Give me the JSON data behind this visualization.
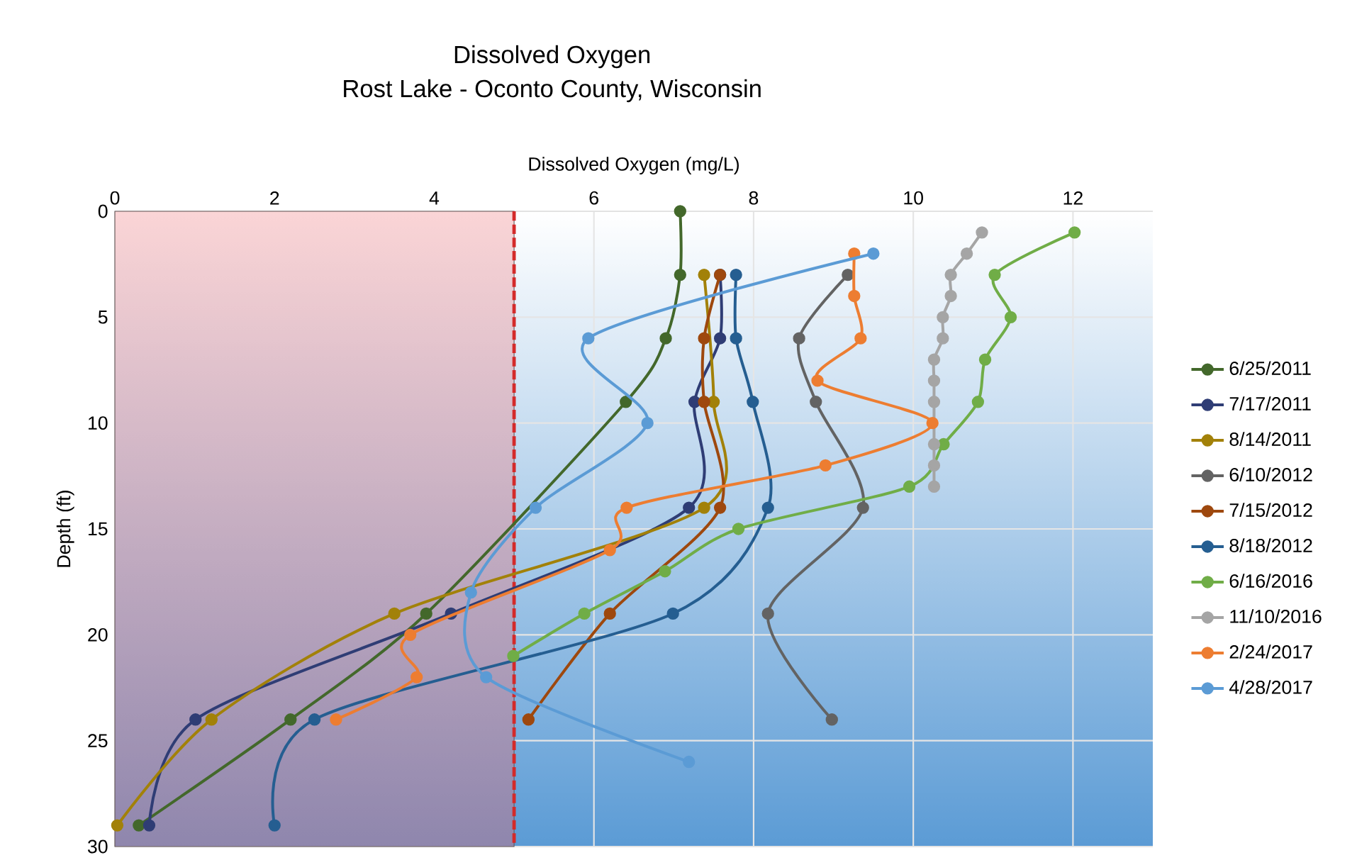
{
  "chart_data": {
    "type": "line",
    "title": "Dissolved Oxygen",
    "subtitle": "Rost Lake - Oconto County, Wisconsin",
    "xlabel": "Dissolved Oxygen (mg/L)",
    "ylabel": "Depth (ft)",
    "xlim": [
      0,
      13
    ],
    "xticks": [
      0,
      2,
      4,
      6,
      8,
      10,
      12
    ],
    "ylim": [
      30,
      0
    ],
    "yticks": [
      0,
      5,
      10,
      15,
      20,
      25,
      30
    ],
    "grid": true,
    "legend": "right",
    "marker": "circle",
    "line_style": "solid",
    "ref_lines": [
      {
        "axis": "x",
        "value": 5,
        "color": "#d42a2a",
        "line_style": "dashed"
      }
    ],
    "bands": [
      {
        "axis": "x",
        "from": 0,
        "to": 5,
        "color": "#fbd5d6"
      }
    ],
    "series": [
      {
        "name": "6/25/2011",
        "color": "#43682b",
        "x": [
          7.08,
          7.08,
          6.9,
          6.4,
          3.9,
          2.2,
          0.3
        ],
        "values": [
          0,
          3,
          6,
          9,
          19,
          24,
          29
        ]
      },
      {
        "name": "7/17/2011",
        "color": "#2f3d75",
        "x": [
          7.58,
          7.58,
          7.26,
          7.19,
          4.21,
          1.01,
          0.43
        ],
        "values": [
          3,
          6,
          9,
          14,
          19,
          24,
          29
        ]
      },
      {
        "name": "8/14/2011",
        "color": "#a28109",
        "x": [
          7.38,
          null,
          7.5,
          7.38,
          3.5,
          1.21,
          0.03
        ],
        "values": [
          3,
          null,
          9,
          14,
          19,
          24,
          29
        ]
      },
      {
        "name": "6/10/2012",
        "color": "#636363",
        "x": [
          9.18,
          8.57,
          8.78,
          9.37,
          8.18,
          8.98
        ],
        "values": [
          3,
          6,
          9,
          14,
          19,
          24
        ]
      },
      {
        "name": "7/15/2012",
        "color": "#9e480e",
        "x": [
          7.58,
          7.38,
          7.38,
          7.58,
          6.2,
          5.18
        ],
        "values": [
          3,
          6,
          9,
          14,
          19,
          24
        ]
      },
      {
        "name": "8/18/2012",
        "color": "#255e91",
        "x": [
          7.78,
          7.78,
          7.99,
          8.18,
          6.99,
          2.5,
          2.0
        ],
        "values": [
          3,
          6,
          9,
          14,
          19,
          24,
          29
        ]
      },
      {
        "name": "6/16/2016",
        "color": "#70ad47",
        "x": [
          12.02,
          11.02,
          11.22,
          10.9,
          10.81,
          10.38,
          9.95,
          7.81,
          6.89,
          5.88,
          4.99
        ],
        "values": [
          1,
          3,
          5,
          7,
          9,
          11,
          13,
          15,
          17,
          19,
          21
        ]
      },
      {
        "name": "11/10/2016",
        "color": "#a5a5a5",
        "x": [
          10.86,
          10.67,
          10.47,
          10.47,
          10.37,
          10.37,
          10.26,
          10.26,
          10.26,
          null,
          10.26,
          10.26,
          10.26
        ],
        "values": [
          1,
          2,
          3,
          4,
          5,
          6,
          7,
          8,
          9,
          null,
          11,
          12,
          13
        ]
      },
      {
        "name": "2/24/2017",
        "color": "#ed7d31",
        "x": [
          9.26,
          9.26,
          9.34,
          8.8,
          10.24,
          8.9,
          6.41,
          6.2,
          3.7,
          3.78,
          2.77
        ],
        "values": [
          2,
          4,
          6,
          8,
          10,
          12,
          14,
          16,
          20,
          22,
          24
        ]
      },
      {
        "name": "4/28/2017",
        "color": "#5b9bd5",
        "x": [
          9.5,
          5.93,
          6.67,
          5.27,
          4.46,
          4.65,
          7.19
        ],
        "values": [
          2,
          6,
          10,
          14,
          18,
          22,
          26
        ]
      }
    ]
  }
}
